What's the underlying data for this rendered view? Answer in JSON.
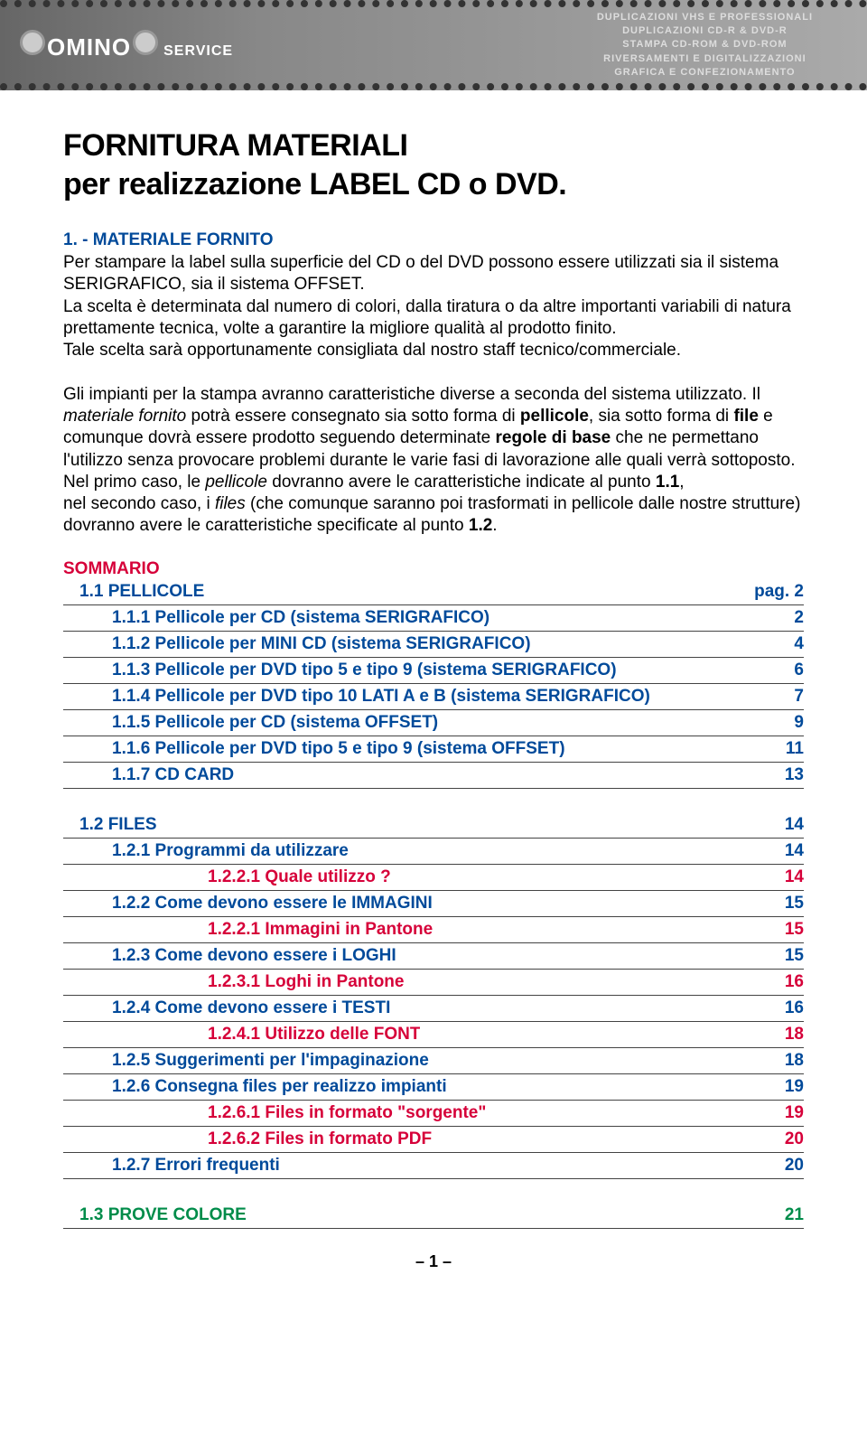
{
  "banner": {
    "logo_line1": "OMINO",
    "logo_line2": "SERVICE",
    "tag1": "DUPLICAZIONI VHS E PROFESSIONALI",
    "tag2": "DUPLICAZIONI CD-R & DVD-R",
    "tag3": "STAMPA CD-ROM & DVD-ROM",
    "tag4": "RIVERSAMENTI E DIGITALIZZAZIONI",
    "tag5": "GRAFICA E CONFEZIONAMENTO"
  },
  "title_line1": "FORNITURA MATERIALI",
  "title_line2": "per realizzazione LABEL CD o DVD.",
  "heading1": "1. - MATERIALE FORNITO",
  "para1": "Per stampare la label sulla superficie del CD o del DVD possono essere utilizzati sia il sistema SERIGRAFICO, sia il sistema OFFSET.\nLa scelta è determinata dal numero di colori, dalla tiratura o da altre importanti variabili di natura prettamente tecnica, volte a garantire la migliore qualità al prodotto finito.\nTale scelta sarà opportunamente consigliata dal nostro staff tecnico/commerciale.",
  "para2_pre": "Gli impianti per la stampa avranno caratteristiche diverse a seconda del sistema utilizzato.\nIl ",
  "para2_i1": "materiale fornito",
  "para2_mid1": " potrà essere consegnato sia sotto forma di ",
  "para2_b1": "pellicole",
  "para2_mid2": ", sia sotto forma di ",
  "para2_b2": "file",
  "para2_mid3": " e comunque dovrà essere prodotto seguendo determinate ",
  "para2_b3": "regole di base",
  "para2_mid4": " che ne permettano l'utilizzo senza provocare problemi durante le varie fasi di lavorazione alle quali verrà sottoposto.\nNel primo caso, le ",
  "para2_i2": "pellicole",
  "para2_mid5": " dovranno avere le caratteristiche indicate al punto ",
  "para2_b4": "1.1",
  "para2_mid6": ",\nnel secondo caso, i ",
  "para2_i3": "files",
  "para2_mid7": " (che comunque saranno poi trasformati in pellicole dalle nostre strutture) dovranno avere le caratteristiche specificate al punto ",
  "para2_b5": "1.2",
  "para2_end": ".",
  "sommario": "SOMMARIO",
  "toc1": [
    {
      "label": "1.1 PELLICOLE",
      "page": "pag. 2",
      "indent": 0
    },
    {
      "label": "1.1.1 Pellicole per CD (sistema SERIGRAFICO)",
      "page": "2",
      "indent": 1
    },
    {
      "label": "1.1.2 Pellicole per MINI CD (sistema SERIGRAFICO)",
      "page": "4",
      "indent": 1
    },
    {
      "label": "1.1.3 Pellicole per DVD tipo 5 e tipo 9 (sistema SERIGRAFICO)",
      "page": "6",
      "indent": 1
    },
    {
      "label": "1.1.4 Pellicole per DVD tipo 10 LATI A e B (sistema SERIGRAFICO)",
      "page": "7",
      "indent": 1
    },
    {
      "label": "1.1.5 Pellicole per CD (sistema OFFSET)",
      "page": "9",
      "indent": 1
    },
    {
      "label": "1.1.6 Pellicole per DVD tipo 5 e tipo 9 (sistema OFFSET)",
      "page": "11",
      "indent": 1
    },
    {
      "label": "1.1.7 CD CARD",
      "page": "13",
      "indent": 1
    }
  ],
  "toc2": [
    {
      "label": "1.2 FILES",
      "page": "14",
      "indent": 0,
      "color": "blue"
    },
    {
      "label": "1.2.1 Programmi da utilizzare",
      "page": "14",
      "indent": 1,
      "color": "blue"
    },
    {
      "label": "1.2.2.1   Quale utilizzo ?",
      "page": "14",
      "indent": 2,
      "color": "red"
    },
    {
      "label": "1.2.2 Come devono essere le IMMAGINI",
      "page": "15",
      "indent": 1,
      "color": "blue"
    },
    {
      "label": "1.2.2.1   Immagini in Pantone",
      "page": "15",
      "indent": 2,
      "color": "red"
    },
    {
      "label": "1.2.3 Come devono essere i LOGHI",
      "page": "15",
      "indent": 1,
      "color": "blue"
    },
    {
      "label": "1.2.3.1   Loghi in Pantone",
      "page": "16",
      "indent": 2,
      "color": "red"
    },
    {
      "label": "1.2.4 Come devono essere i TESTI",
      "page": "16",
      "indent": 1,
      "color": "blue"
    },
    {
      "label": "1.2.4.1   Utilizzo delle FONT",
      "page": "18",
      "indent": 2,
      "color": "red"
    },
    {
      "label": "1.2.5 Suggerimenti per l'impaginazione",
      "page": "18",
      "indent": 1,
      "color": "blue"
    },
    {
      "label": "1.2.6 Consegna files per realizzo impianti",
      "page": "19",
      "indent": 1,
      "color": "blue"
    },
    {
      "label": "1.2.6.1   Files in formato \"sorgente\"",
      "page": "19",
      "indent": 2,
      "color": "red"
    },
    {
      "label": "1.2.6.2   Files in formato PDF",
      "page": "20",
      "indent": 2,
      "color": "red"
    },
    {
      "label": "1.2.7 Errori frequenti",
      "page": "20",
      "indent": 1,
      "color": "blue"
    }
  ],
  "toc3": [
    {
      "label": "1.3 PROVE COLORE",
      "page": "21",
      "indent": 0,
      "color": "green"
    }
  ],
  "page_number": "– 1 –"
}
